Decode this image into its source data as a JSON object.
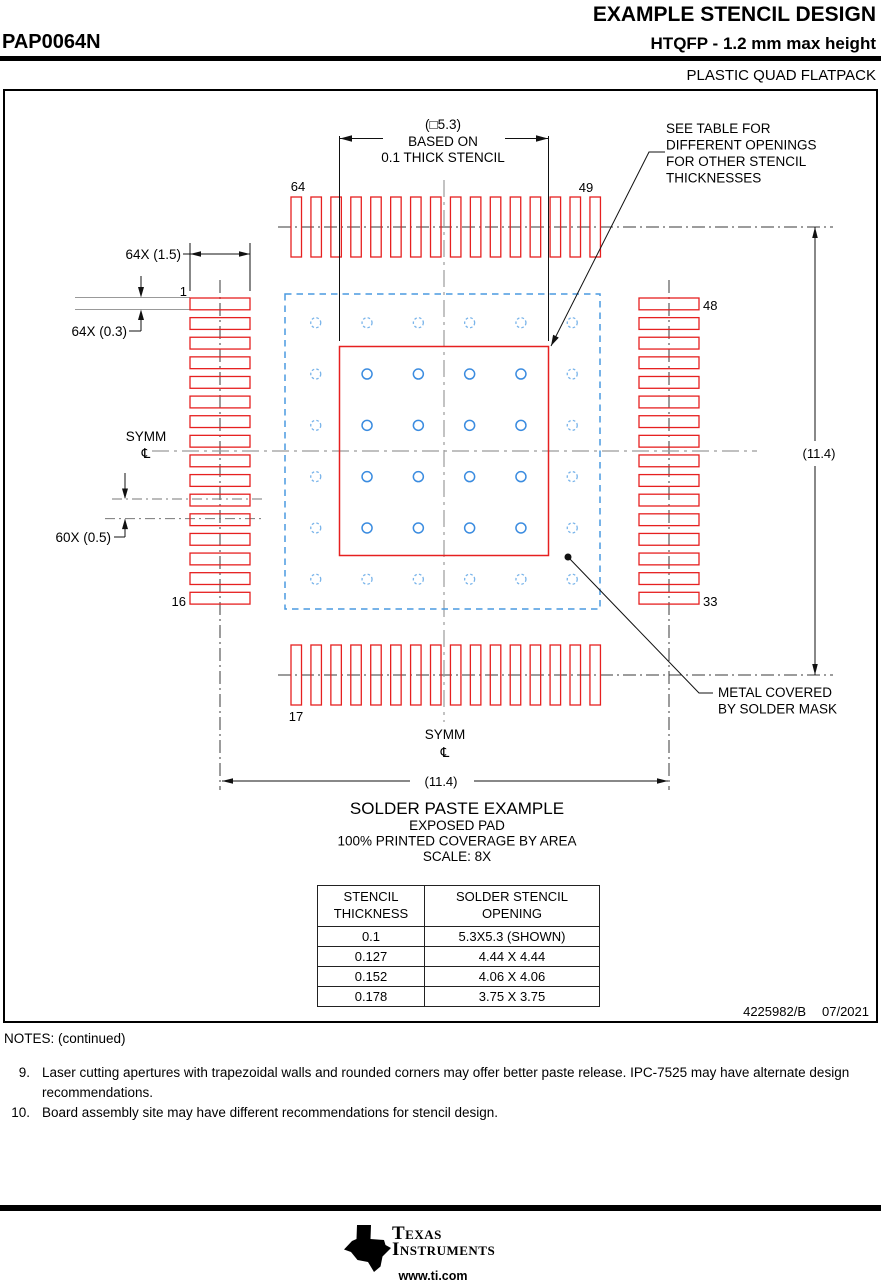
{
  "header": {
    "doc_title": "EXAMPLE STENCIL DESIGN",
    "part_number": "PAP0064N",
    "subtitle": "HTQFP - 1.2 mm max height",
    "package_type": "PLASTIC QUAD FLATPACK"
  },
  "drawing": {
    "pins_per_side": 16,
    "via_grid_size": 6,
    "colors": {
      "pad": "#e62020",
      "via": "#3b8ce0",
      "via_outer": "#79b4ea",
      "mask_boundary": "#4a9ae0"
    },
    "labels": {
      "pin_64": "64",
      "pin_49": "49",
      "pin_1": "1",
      "pin_16": "16",
      "pin_17": "17",
      "pin_33": "33",
      "pin_48": "48",
      "dim_square_l1": "(□5.3)",
      "dim_square_l2": "BASED ON",
      "dim_square_l3": "0.1 THICK STENCIL",
      "dim_pad_len": "64X (1.5)",
      "dim_pad_w": "64X (0.3)",
      "dim_pitch": "60X (0.5)",
      "dim_overall_v": "(11.4)",
      "dim_overall_h": "(11.4)",
      "symm_left": "SYMM",
      "symm_bottom": "SYMM",
      "cl_left": "℄",
      "cl_bottom": "℄",
      "see_table_1": "SEE TABLE FOR",
      "see_table_2": "DIFFERENT OPENINGS",
      "see_table_3": "FOR OTHER STENCIL",
      "see_table_4": "THICKNESSES",
      "metal_1": "METAL COVERED",
      "metal_2": "BY SOLDER MASK"
    },
    "caption": {
      "l1": "SOLDER PASTE EXAMPLE",
      "l2": "EXPOSED PAD",
      "l3": "100% PRINTED COVERAGE BY AREA",
      "l4": "SCALE: 8X"
    },
    "doc_number": "4225982/B",
    "doc_date": "07/2021"
  },
  "table": {
    "headers": [
      [
        "STENCIL",
        "THICKNESS"
      ],
      [
        "SOLDER STENCIL",
        "OPENING"
      ]
    ],
    "rows": [
      [
        "0.1",
        "5.3X5.3 (SHOWN)"
      ],
      [
        "0.127",
        "4.44 X 4.44"
      ],
      [
        "0.152",
        "4.06 X 4.06"
      ],
      [
        "0.178",
        "3.75 X 3.75"
      ]
    ]
  },
  "notes": {
    "title": "NOTES: (continued)",
    "items": [
      {
        "num": "9.",
        "text": "Laser cutting apertures with trapezoidal walls and rounded corners may offer better paste release. IPC-7525 may have alternate design recommendations."
      },
      {
        "num": "10.",
        "text": "Board assembly site may have different recommendations for stencil design."
      }
    ]
  },
  "footer": {
    "brand_line1": "Texas",
    "brand_line2": "Instruments",
    "logo_mark": "ti",
    "url": "www.ti.com"
  }
}
